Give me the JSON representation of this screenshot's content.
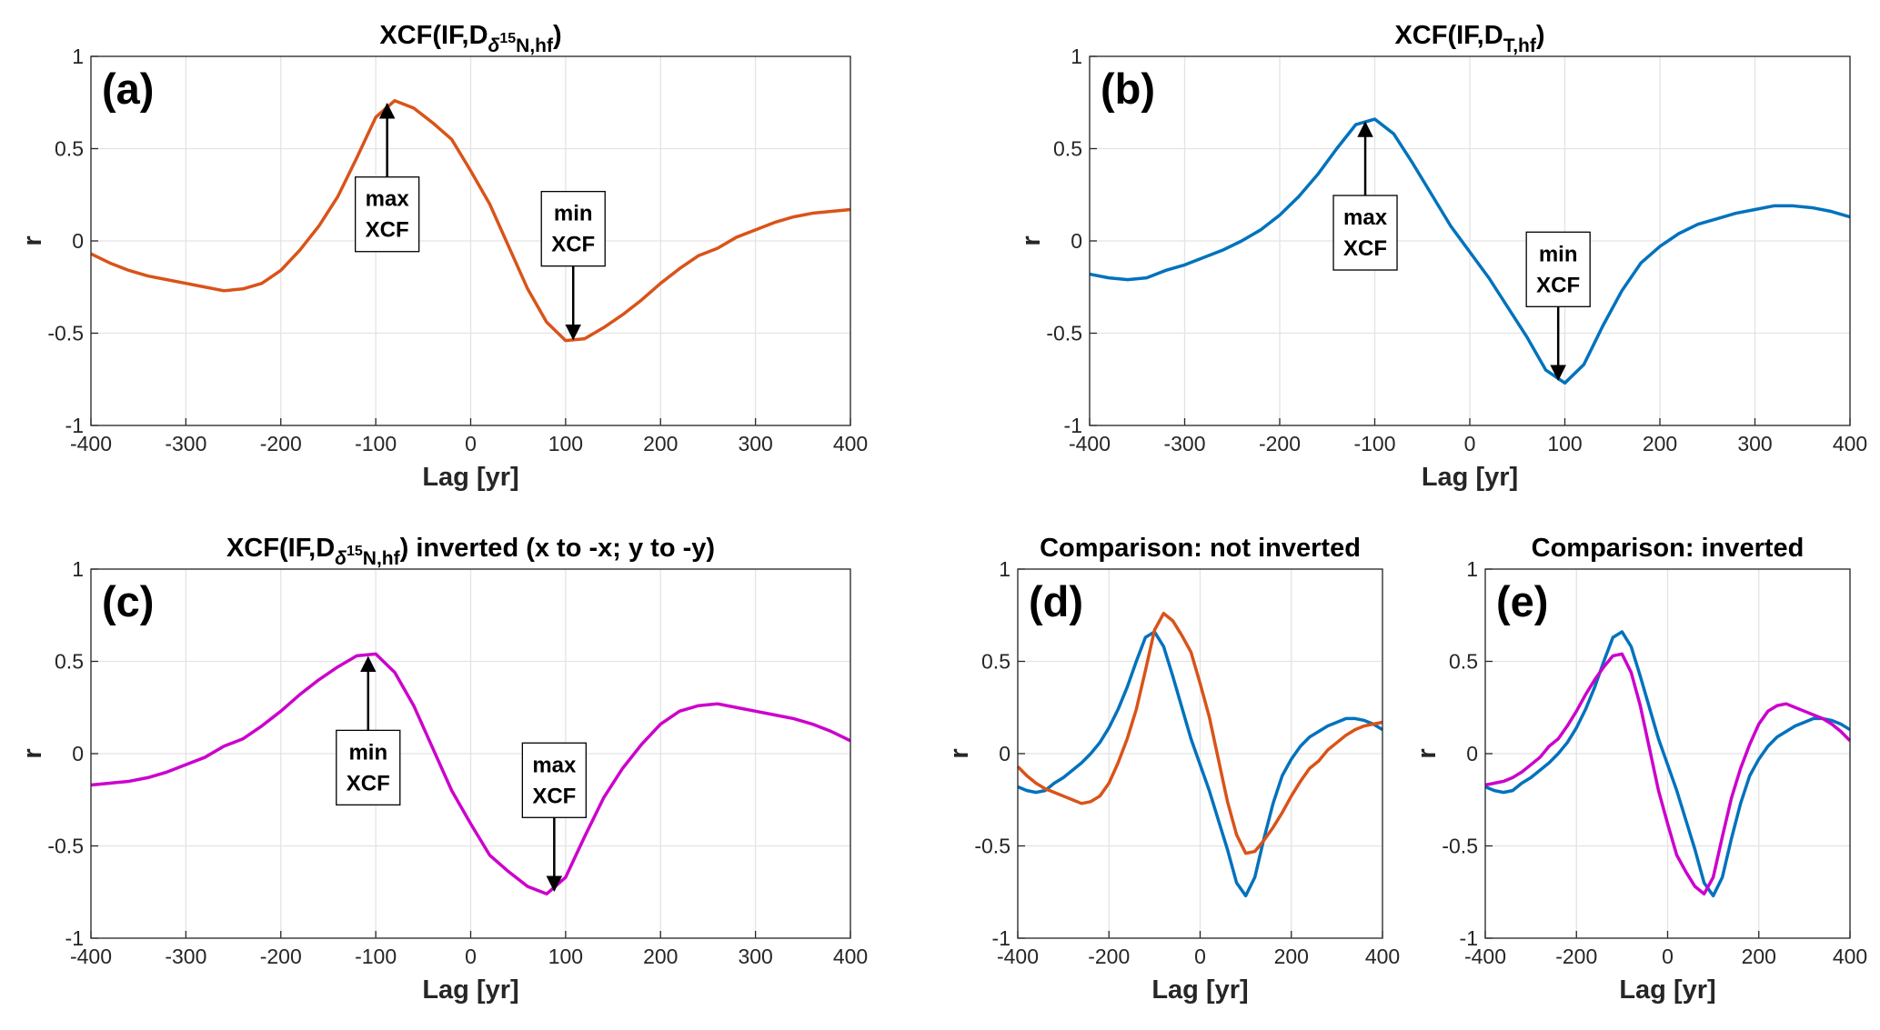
{
  "chart_data": [
    {
      "type": "line",
      "title_parts": [
        {
          "text": "XCF(IF,D"
        },
        {
          "text": "δ",
          "style": "sub-italic"
        },
        {
          "text": "15",
          "style": "sub-sup"
        },
        {
          "text": "N,hf",
          "style": "sub"
        },
        {
          "text": ")"
        }
      ],
      "panel_label": "(a)",
      "xlabel": "Lag [yr]",
      "ylabel": "r",
      "xlim": [
        -400,
        400
      ],
      "ylim": [
        -1,
        1
      ],
      "xticks": [
        -400,
        -300,
        -200,
        -100,
        0,
        100,
        200,
        300,
        400
      ],
      "yticks": [
        -1,
        -0.5,
        0,
        0.5,
        1
      ],
      "grid": true,
      "x": [
        -400,
        -380,
        -360,
        -340,
        -320,
        -300,
        -280,
        -260,
        -240,
        -220,
        -200,
        -180,
        -160,
        -140,
        -120,
        -100,
        -80,
        -60,
        -40,
        -20,
        0,
        20,
        40,
        60,
        80,
        100,
        120,
        140,
        160,
        180,
        200,
        220,
        240,
        260,
        280,
        300,
        320,
        340,
        360,
        380,
        400
      ],
      "series": [
        {
          "color": "#D95319",
          "values": [
            -0.07,
            -0.12,
            -0.16,
            -0.19,
            -0.21,
            -0.23,
            -0.25,
            -0.27,
            -0.26,
            -0.23,
            -0.16,
            -0.05,
            0.08,
            0.24,
            0.45,
            0.67,
            0.76,
            0.72,
            0.64,
            0.55,
            0.38,
            0.2,
            -0.03,
            -0.26,
            -0.44,
            -0.54,
            -0.53,
            -0.47,
            -0.4,
            -0.32,
            -0.23,
            -0.15,
            -0.08,
            -0.04,
            0.02,
            0.06,
            0.1,
            0.13,
            0.15,
            0.16,
            0.17
          ]
        }
      ],
      "annotations": [
        {
          "lines": [
            "max",
            "XCF"
          ],
          "xy": [
            -88,
            0.76
          ],
          "arrow": "up"
        },
        {
          "lines": [
            "min",
            "XCF"
          ],
          "xy": [
            108,
            -0.55
          ],
          "arrow": "down"
        }
      ]
    },
    {
      "type": "line",
      "title_parts": [
        {
          "text": "XCF(IF,D"
        },
        {
          "text": "T,hf",
          "style": "sub"
        },
        {
          "text": ")"
        }
      ],
      "panel_label": "(b)",
      "xlabel": "Lag [yr]",
      "ylabel": "r",
      "xlim": [
        -400,
        400
      ],
      "ylim": [
        -1,
        1
      ],
      "xticks": [
        -400,
        -300,
        -200,
        -100,
        0,
        100,
        200,
        300,
        400
      ],
      "yticks": [
        -1,
        -0.5,
        0,
        0.5,
        1
      ],
      "grid": true,
      "x": [
        -400,
        -380,
        -360,
        -340,
        -320,
        -300,
        -280,
        -260,
        -240,
        -220,
        -200,
        -180,
        -160,
        -140,
        -120,
        -100,
        -80,
        -60,
        -40,
        -20,
        0,
        20,
        40,
        60,
        80,
        100,
        120,
        140,
        160,
        180,
        200,
        220,
        240,
        260,
        280,
        300,
        320,
        340,
        360,
        380,
        400
      ],
      "series": [
        {
          "color": "#0072BD",
          "values": [
            -0.18,
            -0.2,
            -0.21,
            -0.2,
            -0.16,
            -0.13,
            -0.09,
            -0.05,
            0,
            0.06,
            0.14,
            0.24,
            0.36,
            0.5,
            0.63,
            0.66,
            0.58,
            0.42,
            0.25,
            0.08,
            -0.06,
            -0.2,
            -0.36,
            -0.52,
            -0.7,
            -0.77,
            -0.67,
            -0.46,
            -0.27,
            -0.12,
            -0.03,
            0.04,
            0.09,
            0.12,
            0.15,
            0.17,
            0.19,
            0.19,
            0.18,
            0.16,
            0.13
          ]
        }
      ],
      "annotations": [
        {
          "lines": [
            "max",
            "XCF"
          ],
          "xy": [
            -110,
            0.66
          ],
          "arrow": "up"
        },
        {
          "lines": [
            "min",
            "XCF"
          ],
          "xy": [
            93,
            -0.77
          ],
          "arrow": "down"
        }
      ]
    },
    {
      "type": "line",
      "title_parts": [
        {
          "text": "XCF(IF,D"
        },
        {
          "text": "δ",
          "style": "sub-italic"
        },
        {
          "text": "15",
          "style": "sub-sup"
        },
        {
          "text": "N,hf",
          "style": "sub"
        },
        {
          "text": ") inverted (x to -x; y to -y)"
        }
      ],
      "panel_label": "(c)",
      "xlabel": "Lag [yr]",
      "ylabel": "r",
      "xlim": [
        -400,
        400
      ],
      "ylim": [
        -1,
        1
      ],
      "xticks": [
        -400,
        -300,
        -200,
        -100,
        0,
        100,
        200,
        300,
        400
      ],
      "yticks": [
        -1,
        -0.5,
        0,
        0.5,
        1
      ],
      "grid": true,
      "x": [
        -400,
        -380,
        -360,
        -340,
        -320,
        -300,
        -280,
        -260,
        -240,
        -220,
        -200,
        -180,
        -160,
        -140,
        -120,
        -100,
        -80,
        -60,
        -40,
        -20,
        0,
        20,
        40,
        60,
        80,
        100,
        120,
        140,
        160,
        180,
        200,
        220,
        240,
        260,
        280,
        300,
        320,
        340,
        360,
        380,
        400
      ],
      "series": [
        {
          "color": "#CC00CC",
          "values": [
            -0.17,
            -0.16,
            -0.15,
            -0.13,
            -0.1,
            -0.06,
            -0.02,
            0.04,
            0.08,
            0.15,
            0.23,
            0.32,
            0.4,
            0.47,
            0.53,
            0.54,
            0.44,
            0.26,
            0.03,
            -0.2,
            -0.38,
            -0.55,
            -0.64,
            -0.72,
            -0.76,
            -0.67,
            -0.45,
            -0.24,
            -0.08,
            0.05,
            0.16,
            0.23,
            0.26,
            0.27,
            0.25,
            0.23,
            0.21,
            0.19,
            0.16,
            0.12,
            0.07
          ]
        }
      ],
      "annotations": [
        {
          "lines": [
            "min",
            "XCF"
          ],
          "xy": [
            -108,
            0.54
          ],
          "arrow": "up"
        },
        {
          "lines": [
            "max",
            "XCF"
          ],
          "xy": [
            88,
            -0.76
          ],
          "arrow": "down"
        }
      ]
    },
    {
      "type": "line",
      "title_parts": [
        {
          "text": "Comparison: not inverted"
        }
      ],
      "panel_label": "(d)",
      "xlabel": "Lag [yr]",
      "ylabel": "r",
      "xlim": [
        -400,
        400
      ],
      "ylim": [
        -1,
        1
      ],
      "xticks": [
        -400,
        -200,
        0,
        200,
        400
      ],
      "yticks": [
        -1,
        -0.5,
        0,
        0.5,
        1
      ],
      "grid": true,
      "x": [
        -400,
        -380,
        -360,
        -340,
        -320,
        -300,
        -280,
        -260,
        -240,
        -220,
        -200,
        -180,
        -160,
        -140,
        -120,
        -100,
        -80,
        -60,
        -40,
        -20,
        0,
        20,
        40,
        60,
        80,
        100,
        120,
        140,
        160,
        180,
        200,
        220,
        240,
        260,
        280,
        300,
        320,
        340,
        360,
        380,
        400
      ],
      "series": [
        {
          "color": "#0072BD",
          "values": [
            -0.18,
            -0.2,
            -0.21,
            -0.2,
            -0.16,
            -0.13,
            -0.09,
            -0.05,
            0,
            0.06,
            0.14,
            0.24,
            0.36,
            0.5,
            0.63,
            0.66,
            0.58,
            0.42,
            0.25,
            0.08,
            -0.06,
            -0.2,
            -0.36,
            -0.52,
            -0.7,
            -0.77,
            -0.67,
            -0.46,
            -0.27,
            -0.12,
            -0.03,
            0.04,
            0.09,
            0.12,
            0.15,
            0.17,
            0.19,
            0.19,
            0.18,
            0.16,
            0.13
          ]
        },
        {
          "color": "#D95319",
          "values": [
            -0.07,
            -0.12,
            -0.16,
            -0.19,
            -0.21,
            -0.23,
            -0.25,
            -0.27,
            -0.26,
            -0.23,
            -0.16,
            -0.05,
            0.08,
            0.24,
            0.45,
            0.67,
            0.76,
            0.72,
            0.64,
            0.55,
            0.38,
            0.2,
            -0.03,
            -0.26,
            -0.44,
            -0.54,
            -0.53,
            -0.47,
            -0.4,
            -0.32,
            -0.23,
            -0.15,
            -0.08,
            -0.04,
            0.02,
            0.06,
            0.1,
            0.13,
            0.15,
            0.16,
            0.17
          ]
        }
      ],
      "annotations": []
    },
    {
      "type": "line",
      "title_parts": [
        {
          "text": "Comparison: inverted"
        }
      ],
      "panel_label": "(e)",
      "xlabel": "Lag [yr]",
      "ylabel": "r",
      "xlim": [
        -400,
        400
      ],
      "ylim": [
        -1,
        1
      ],
      "xticks": [
        -400,
        -200,
        0,
        200,
        400
      ],
      "yticks": [
        -1,
        -0.5,
        0,
        0.5,
        1
      ],
      "grid": true,
      "x": [
        -400,
        -380,
        -360,
        -340,
        -320,
        -300,
        -280,
        -260,
        -240,
        -220,
        -200,
        -180,
        -160,
        -140,
        -120,
        -100,
        -80,
        -60,
        -40,
        -20,
        0,
        20,
        40,
        60,
        80,
        100,
        120,
        140,
        160,
        180,
        200,
        220,
        240,
        260,
        280,
        300,
        320,
        340,
        360,
        380,
        400
      ],
      "series": [
        {
          "color": "#0072BD",
          "values": [
            -0.18,
            -0.2,
            -0.21,
            -0.2,
            -0.16,
            -0.13,
            -0.09,
            -0.05,
            0,
            0.06,
            0.14,
            0.24,
            0.36,
            0.5,
            0.63,
            0.66,
            0.58,
            0.42,
            0.25,
            0.08,
            -0.06,
            -0.2,
            -0.36,
            -0.52,
            -0.7,
            -0.77,
            -0.67,
            -0.46,
            -0.27,
            -0.12,
            -0.03,
            0.04,
            0.09,
            0.12,
            0.15,
            0.17,
            0.19,
            0.19,
            0.18,
            0.16,
            0.13
          ]
        },
        {
          "color": "#CC00CC",
          "values": [
            -0.17,
            -0.16,
            -0.15,
            -0.13,
            -0.1,
            -0.06,
            -0.02,
            0.04,
            0.08,
            0.15,
            0.23,
            0.32,
            0.4,
            0.47,
            0.53,
            0.54,
            0.44,
            0.26,
            0.03,
            -0.2,
            -0.38,
            -0.55,
            -0.64,
            -0.72,
            -0.76,
            -0.67,
            -0.45,
            -0.24,
            -0.08,
            0.05,
            0.16,
            0.23,
            0.26,
            0.27,
            0.25,
            0.23,
            0.21,
            0.19,
            0.16,
            0.12,
            0.07
          ]
        }
      ],
      "annotations": []
    }
  ]
}
